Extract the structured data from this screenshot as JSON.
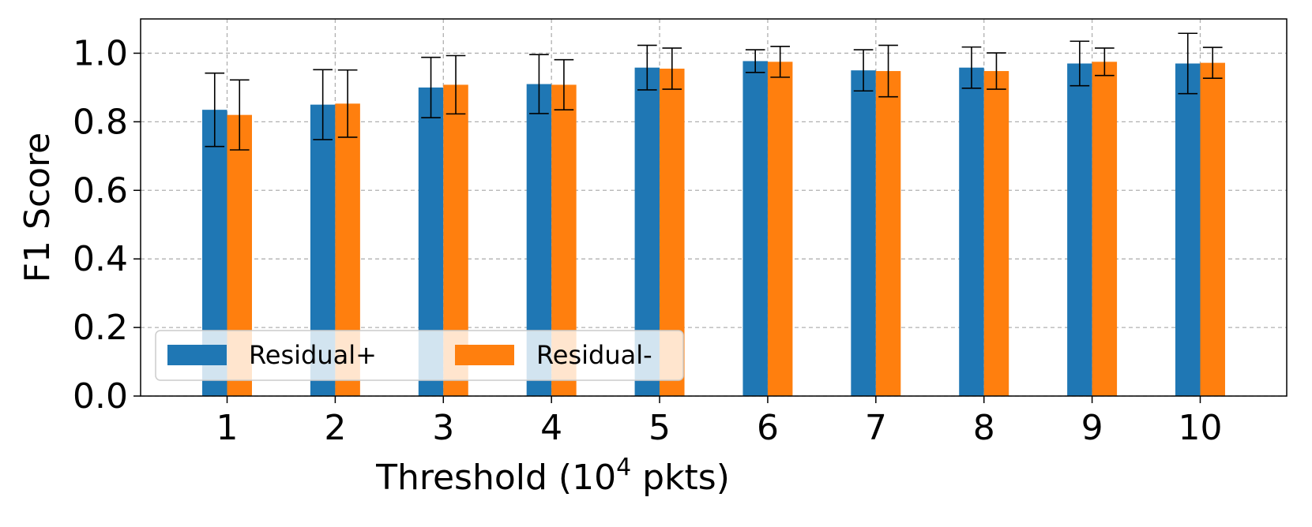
{
  "chart_data": {
    "type": "bar",
    "title": "",
    "xlabel_main": "Threshold (10",
    "xlabel_sup": "4",
    "xlabel_tail": " pkts)",
    "ylabel": "F1 Score",
    "ylim": [
      0.0,
      1.1
    ],
    "yticks": [
      "0.0",
      "0.2",
      "0.4",
      "0.6",
      "0.8",
      "1.0"
    ],
    "ytick_values": [
      0.0,
      0.2,
      0.4,
      0.6,
      0.8,
      1.0
    ],
    "categories": [
      "1",
      "2",
      "3",
      "4",
      "5",
      "6",
      "7",
      "8",
      "9",
      "10"
    ],
    "grid": true,
    "legend_position": "lower-left",
    "series": [
      {
        "name": "Residual+",
        "color": "#1f77b4",
        "values": [
          0.835,
          0.85,
          0.9,
          0.91,
          0.958,
          0.977,
          0.95,
          0.958,
          0.97,
          0.97
        ],
        "errors": [
          0.107,
          0.102,
          0.088,
          0.086,
          0.065,
          0.033,
          0.06,
          0.06,
          0.065,
          0.088
        ]
      },
      {
        "name": "Residual-",
        "color": "#ff7f0e",
        "values": [
          0.82,
          0.853,
          0.908,
          0.908,
          0.955,
          0.975,
          0.948,
          0.948,
          0.975,
          0.972
        ],
        "errors": [
          0.102,
          0.098,
          0.085,
          0.073,
          0.06,
          0.045,
          0.075,
          0.053,
          0.04,
          0.045
        ]
      }
    ]
  }
}
